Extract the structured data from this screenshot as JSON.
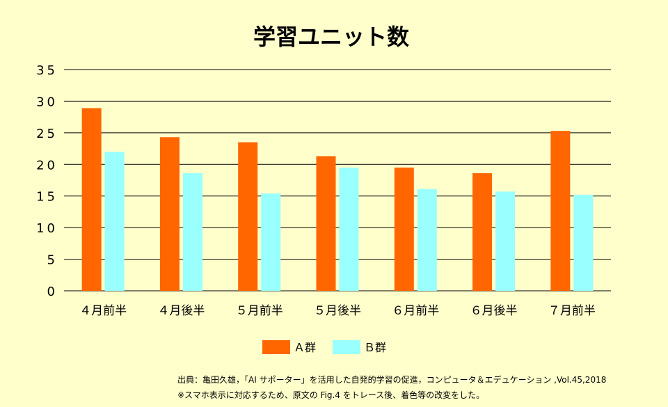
{
  "chart_data": {
    "type": "bar",
    "title": "学習ユニット数",
    "categories": [
      "４月前半",
      "４月後半",
      "５月前半",
      "５月後半",
      "６月前半",
      "６月後半",
      "７月前半"
    ],
    "series": [
      {
        "name": "Ａ群",
        "color": "#FF6600",
        "values": [
          28.9,
          24.3,
          23.5,
          21.3,
          19.5,
          18.6,
          25.3
        ]
      },
      {
        "name": "Ｂ群",
        "color": "#99FFFF",
        "values": [
          22.0,
          18.6,
          15.4,
          19.5,
          16.1,
          15.7,
          15.2
        ]
      }
    ],
    "yticks": [
      "35",
      "30",
      "25",
      "20",
      "15",
      "10",
      "5",
      "0"
    ],
    "ylim": [
      0,
      35
    ],
    "xlabel": "",
    "ylabel": "",
    "grid": true,
    "legend": "bottom-center"
  },
  "source": {
    "line1": "出典：亀田久雄，「AI サポーター」を活用した自発的学習の促進，コンピュータ＆エデュケーション ,Vol.45,2018",
    "line2": "※スマホ表示に対応するため、原文の Fig.4 をトレース後、着色等の改変をした。"
  }
}
